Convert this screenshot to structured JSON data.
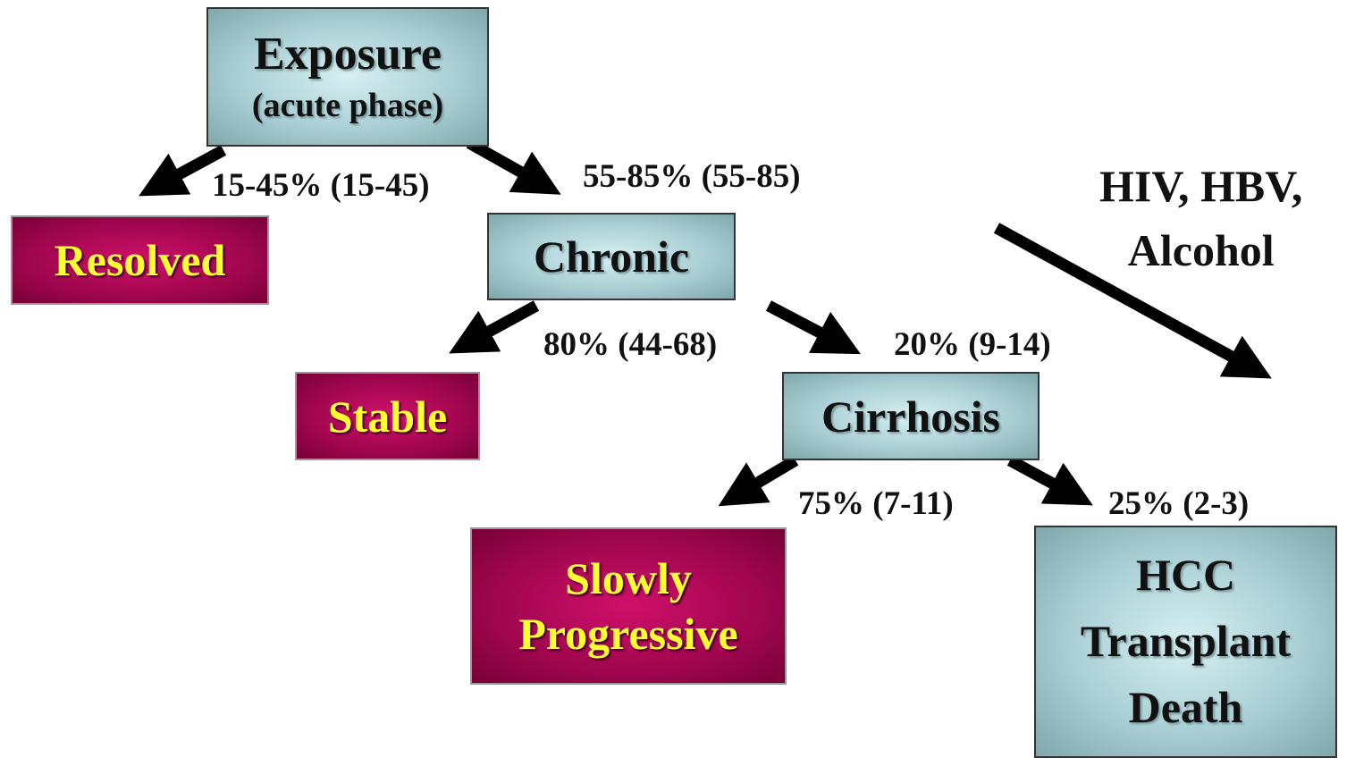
{
  "nodes": [
    {
      "lines": [
        "Exposure",
        "(acute phase)"
      ]
    },
    {
      "lines": [
        "Resolved"
      ]
    },
    {
      "lines": [
        "Chronic"
      ]
    },
    {
      "lines": [
        "Stable"
      ]
    },
    {
      "lines": [
        "Cirrhosis"
      ]
    },
    {
      "lines": [
        "Slowly",
        "Progressive"
      ]
    },
    {
      "lines": [
        "HCC",
        "Transplant",
        "Death"
      ]
    }
  ],
  "edge_labels": [
    "15-45% (15-45)",
    "55-85% (55-85)",
    "80% (44-68)",
    "20% (9-14)",
    "75% (7-11)",
    "25% (2-3)"
  ],
  "annotation": {
    "lines": [
      "HIV, HBV,",
      "Alcohol"
    ]
  }
}
